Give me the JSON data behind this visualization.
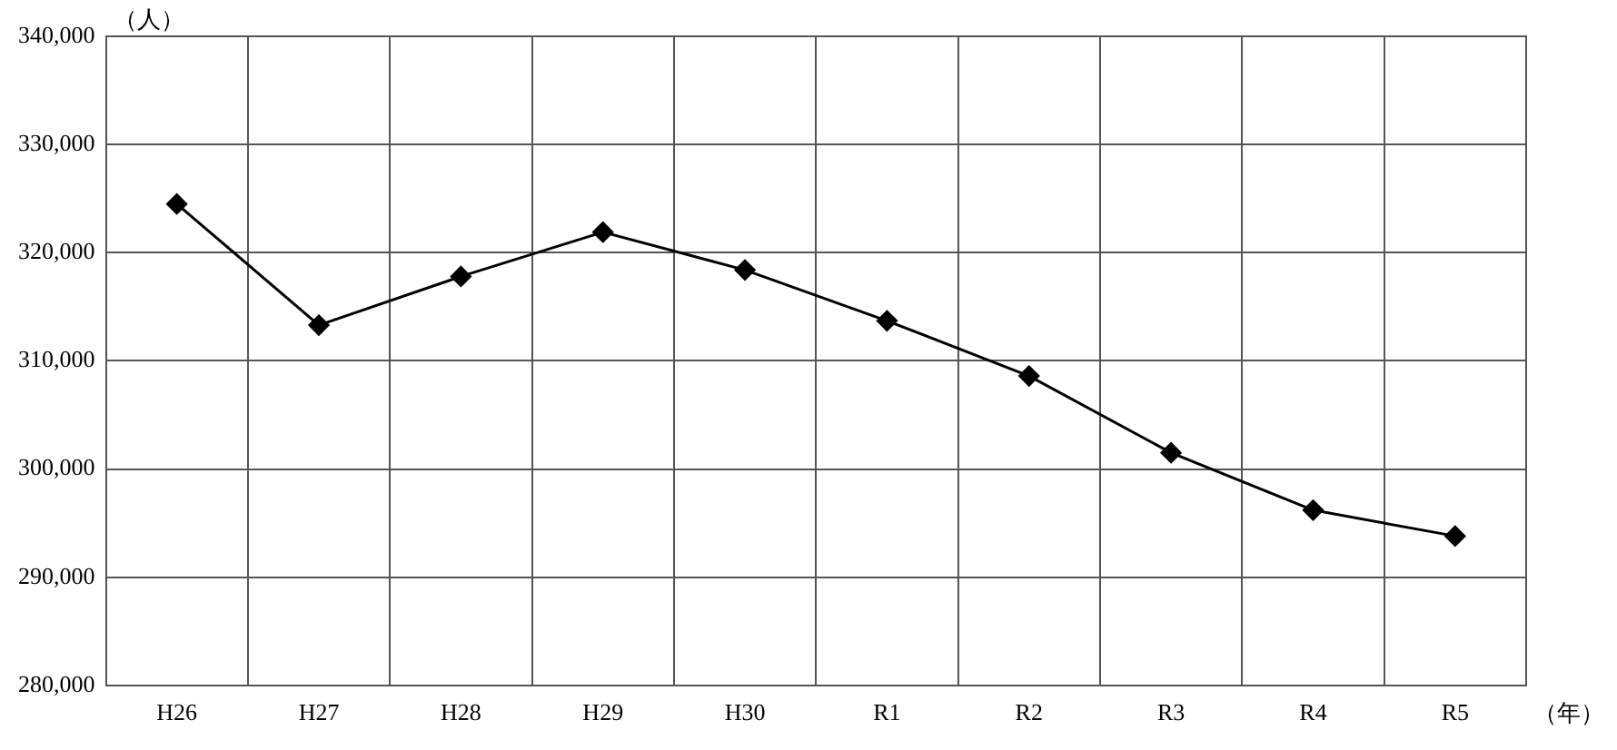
{
  "chart_data": {
    "type": "line",
    "ylabel": "（人）",
    "xlabel": "（年）",
    "categories": [
      "H26",
      "H27",
      "H28",
      "H29",
      "H30",
      "R1",
      "R2",
      "R3",
      "R4",
      "R5"
    ],
    "series": [
      {
        "color": "#000000",
        "values": [
          324500,
          313300,
          317800,
          321900,
          318400,
          313700,
          308600,
          301500,
          296200,
          293800
        ]
      }
    ],
    "ylim": [
      280000,
      340000
    ],
    "yticks": [
      {
        "value": 280000,
        "label": "280,000"
      },
      {
        "value": 290000,
        "label": "290,000"
      },
      {
        "value": 300000,
        "label": "300,000"
      },
      {
        "value": 310000,
        "label": "310,000"
      },
      {
        "value": 320000,
        "label": "320,000"
      },
      {
        "value": 330000,
        "label": "330,000"
      },
      {
        "value": 340000,
        "label": "340,000"
      }
    ],
    "grid": true,
    "marker": "diamond",
    "line_style": "solid"
  }
}
